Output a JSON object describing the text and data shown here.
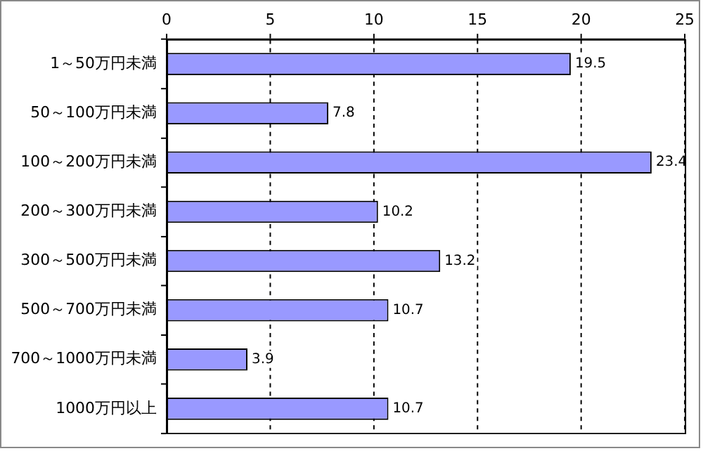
{
  "chart_data": {
    "type": "bar",
    "orientation": "horizontal",
    "categories": [
      "1～50万円未満",
      "50～100万円未満",
      "100～200万円未満",
      "200～300万円未満",
      "300～500万円未満",
      "500～700万円未満",
      "700～1000万円未満",
      "1000万円以上"
    ],
    "values": [
      19.5,
      7.8,
      23.4,
      10.2,
      13.2,
      10.7,
      3.9,
      10.7
    ],
    "color": "#9999ff",
    "xlim": [
      0,
      25
    ],
    "xticks": [
      0,
      5,
      10,
      15,
      20,
      25
    ],
    "grid": "x",
    "data_labels": true,
    "legend": false
  }
}
